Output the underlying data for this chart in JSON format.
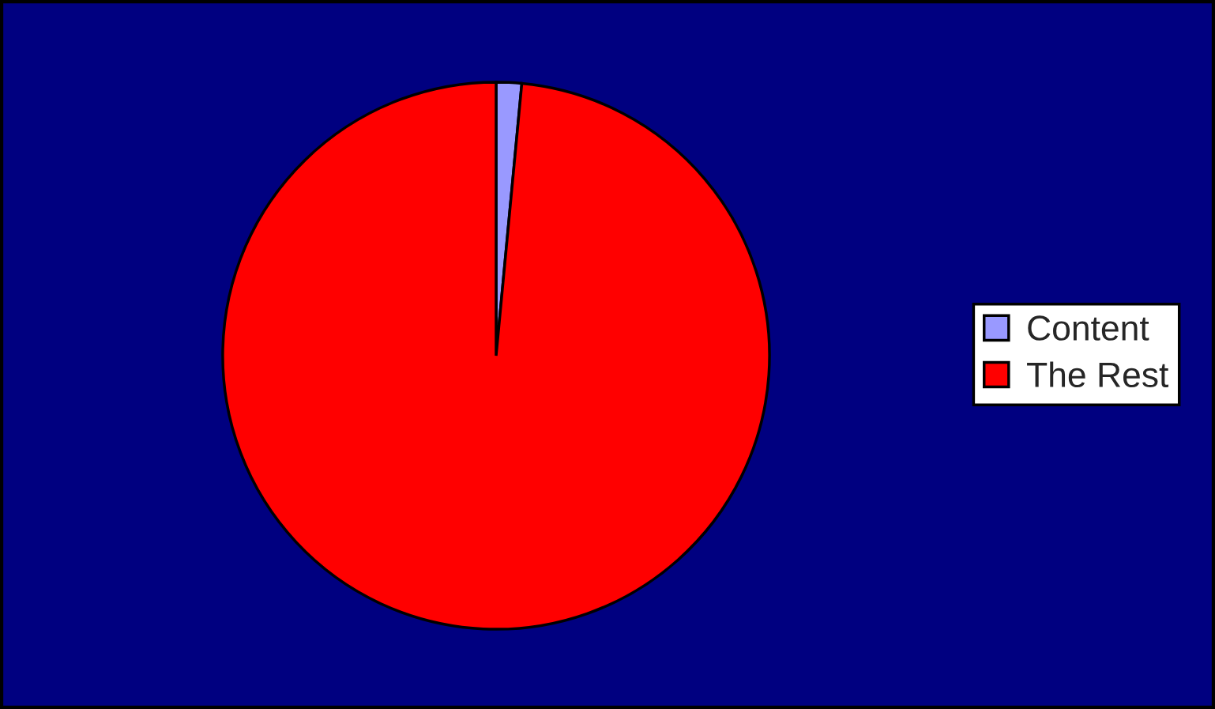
{
  "chart_data": {
    "type": "pie",
    "categories": [
      "Content",
      "The Rest"
    ],
    "values": [
      1.5,
      98.5
    ],
    "colors": [
      "#9999ff",
      "#ff0000"
    ],
    "legend": "right"
  }
}
